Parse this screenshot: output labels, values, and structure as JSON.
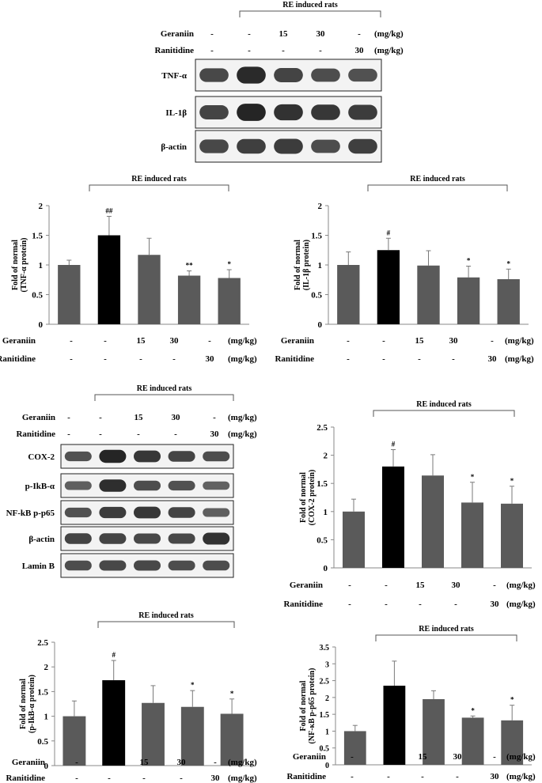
{
  "doses": {
    "row_labels": [
      "Geraniin",
      "Ranitidine"
    ],
    "geraniin": [
      "-",
      "-",
      "15",
      "30",
      "-"
    ],
    "ranitidine": [
      "-",
      "-",
      "-",
      "-",
      "30"
    ],
    "unit": "(mg/kg)"
  },
  "group_label": "RE induced rats",
  "blots": [
    {
      "lanes": 5,
      "rows": [
        "TNF-α",
        "IL-1β",
        "β-actin"
      ]
    },
    {
      "lanes": 5,
      "rows": [
        "COX-2",
        "p-IkB-α",
        "NF-kB p-p65",
        "β-actin",
        "Lamin B"
      ]
    }
  ],
  "colors": {
    "bar": "#5a5a5a",
    "highlight_bar": "#000000",
    "error_bar": "#7a7a7a",
    "axis": "#888888"
  },
  "chart_data": [
    {
      "type": "bar",
      "ylabel": [
        "Fold of normal",
        "(TNF-α protein)"
      ],
      "ylim": [
        0,
        2
      ],
      "ticks": [
        "0",
        "0.5",
        "1",
        "1.5",
        "2"
      ],
      "tick_values": [
        0,
        0.5,
        1,
        1.5,
        2
      ],
      "values": [
        1.0,
        1.5,
        1.17,
        0.82,
        0.78
      ],
      "errors": [
        0.08,
        0.32,
        0.28,
        0.08,
        0.14
      ],
      "annotations": [
        "",
        "##",
        "",
        "**",
        "*"
      ],
      "highlight": 1
    },
    {
      "type": "bar",
      "ylabel": [
        "Fold of normal",
        "(IL-1β protein)"
      ],
      "ylim": [
        0,
        2
      ],
      "ticks": [
        "0",
        "0.5",
        "1",
        "1.5",
        "2"
      ],
      "tick_values": [
        0,
        0.5,
        1,
        1.5,
        2
      ],
      "values": [
        1.0,
        1.25,
        0.99,
        0.79,
        0.76
      ],
      "errors": [
        0.22,
        0.2,
        0.25,
        0.19,
        0.17
      ],
      "annotations": [
        "",
        "#",
        "",
        "*",
        "*"
      ],
      "highlight": 1
    },
    {
      "type": "bar",
      "ylabel": [
        "Fold of normal",
        "(COX-2 protein)"
      ],
      "ylim": [
        0,
        2.5
      ],
      "ticks": [
        "0",
        "0.5",
        "1",
        "1.5",
        "2",
        "2.5"
      ],
      "tick_values": [
        0,
        0.5,
        1,
        1.5,
        2,
        2.5
      ],
      "values": [
        1.0,
        1.8,
        1.64,
        1.16,
        1.14
      ],
      "errors": [
        0.22,
        0.3,
        0.37,
        0.36,
        0.31
      ],
      "annotations": [
        "",
        "#",
        "",
        "*",
        "*"
      ],
      "highlight": 1
    },
    {
      "type": "bar",
      "ylabel": [
        "Fold of normal",
        "(p-IkB-α protein)"
      ],
      "ylim": [
        0,
        2.5
      ],
      "ticks": [
        "0",
        "0.5",
        "1",
        "1.5",
        "2",
        "2.5"
      ],
      "tick_values": [
        0,
        0.5,
        1,
        1.5,
        2,
        2.5
      ],
      "values": [
        1.0,
        1.73,
        1.27,
        1.19,
        1.05
      ],
      "errors": [
        0.31,
        0.4,
        0.35,
        0.33,
        0.3
      ],
      "annotations": [
        "",
        "#",
        "",
        "*",
        "*"
      ],
      "highlight": 1
    },
    {
      "type": "bar",
      "ylabel": [
        "Fold of normal",
        "(NF-κB p-p65 protein)"
      ],
      "ylim": [
        0,
        3.5
      ],
      "ticks": [
        "0",
        "0.5",
        "1",
        "1.5",
        "2",
        "2.5",
        "3",
        "3.5"
      ],
      "tick_values": [
        0,
        0.5,
        1,
        1.5,
        2,
        2.5,
        3,
        3.5
      ],
      "values": [
        1.0,
        2.35,
        1.95,
        1.4,
        1.32
      ],
      "errors": [
        0.17,
        0.73,
        0.25,
        0.05,
        0.45
      ],
      "annotations": [
        "",
        "",
        "",
        "*",
        "*"
      ],
      "highlight": 1
    }
  ]
}
